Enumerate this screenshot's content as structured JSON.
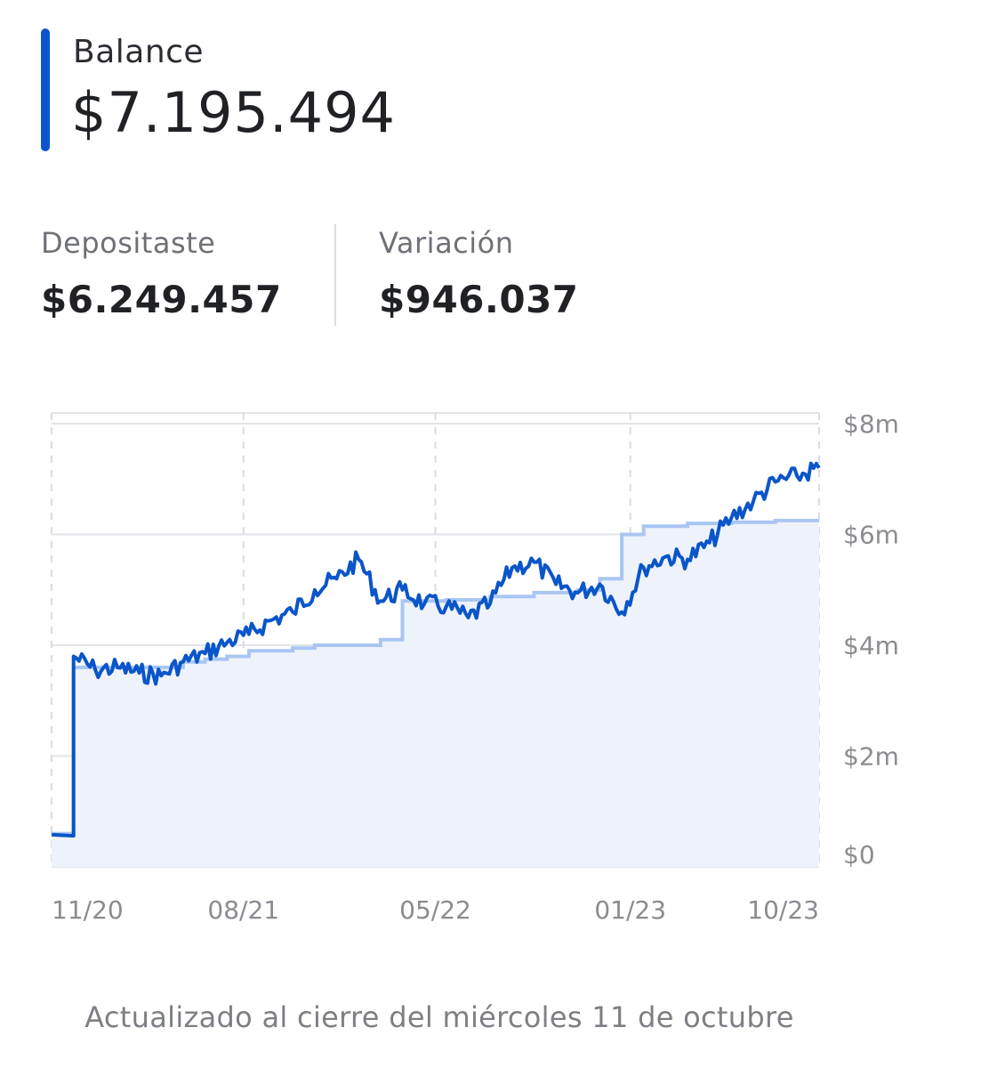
{
  "summary": {
    "balance_label": "Balance",
    "balance_value": "$7.195.494",
    "deposited_label": "Depositaste",
    "deposited_value": "$6.249.457",
    "variation_label": "Variación",
    "variation_value": "$946.037"
  },
  "footer": {
    "updated_text": "Actualizado al cierre del miércoles 11 de octubre"
  },
  "colors": {
    "accent": "#0a55c9",
    "balance_line": "#0a55c9",
    "deposit_line": "#a9c6f3",
    "area_fill": "#eef3fb",
    "grid": "#e1e3e8"
  },
  "chart_data": {
    "type": "line",
    "x_tick_labels": [
      "11/20",
      "08/21",
      "05/22",
      "01/23",
      "10/23"
    ],
    "y_tick_labels": [
      "$8m",
      "$6m",
      "$4m",
      "$2m",
      "$0"
    ],
    "y_ticks": [
      8,
      6,
      4,
      2,
      0
    ],
    "ylim": [
      0,
      8
    ],
    "y_unit": "millions CLP",
    "x_range": [
      "2020-11",
      "2023-10"
    ],
    "grid": true,
    "legend": "none",
    "series": [
      {
        "role": "deposits",
        "style": "step",
        "points": [
          [
            "2020-11",
            0.6
          ],
          [
            "2020-12",
            3.6
          ],
          [
            "2021-04",
            3.6
          ],
          [
            "2021-05",
            3.7
          ],
          [
            "2021-06",
            3.75
          ],
          [
            "2021-07",
            3.8
          ],
          [
            "2021-08",
            3.9
          ],
          [
            "2021-09",
            3.9
          ],
          [
            "2021-10",
            3.95
          ],
          [
            "2021-11",
            4.0
          ],
          [
            "2022-01",
            4.0
          ],
          [
            "2022-02",
            4.1
          ],
          [
            "2022-03",
            4.8
          ],
          [
            "2022-05",
            4.82
          ],
          [
            "2022-07",
            4.88
          ],
          [
            "2022-09",
            4.95
          ],
          [
            "2022-11",
            5.0
          ],
          [
            "2022-12",
            5.2
          ],
          [
            "2023-01",
            6.0
          ],
          [
            "2023-02",
            6.15
          ],
          [
            "2023-04",
            6.2
          ],
          [
            "2023-06",
            6.22
          ],
          [
            "2023-08",
            6.25
          ],
          [
            "2023-10",
            6.25
          ]
        ]
      },
      {
        "role": "balance",
        "style": "line",
        "points": [
          [
            "2020-11",
            0.58
          ],
          [
            "2020-12",
            0.56
          ],
          [
            "2020-12",
            3.8
          ],
          [
            "2021-01",
            3.55
          ],
          [
            "2021-02",
            3.6
          ],
          [
            "2021-03",
            3.5
          ],
          [
            "2021-04",
            3.45
          ],
          [
            "2021-05",
            3.7
          ],
          [
            "2021-06",
            3.85
          ],
          [
            "2021-07",
            4.05
          ],
          [
            "2021-08",
            4.2
          ],
          [
            "2021-09",
            4.45
          ],
          [
            "2021-10",
            4.6
          ],
          [
            "2021-11",
            5.0
          ],
          [
            "2021-12",
            5.2
          ],
          [
            "2022-01",
            5.55
          ],
          [
            "2022-02",
            4.8
          ],
          [
            "2022-03",
            5.0
          ],
          [
            "2022-04",
            4.75
          ],
          [
            "2022-05",
            4.7
          ],
          [
            "2022-06",
            4.5
          ],
          [
            "2022-07",
            4.75
          ],
          [
            "2022-08",
            5.4
          ],
          [
            "2022-09",
            5.5
          ],
          [
            "2022-10",
            5.1
          ],
          [
            "2022-11",
            4.95
          ],
          [
            "2022-12",
            5.1
          ],
          [
            "2023-01",
            4.6
          ],
          [
            "2023-02",
            5.4
          ],
          [
            "2023-03",
            5.6
          ],
          [
            "2023-04",
            5.55
          ],
          [
            "2023-05",
            5.85
          ],
          [
            "2023-06",
            6.3
          ],
          [
            "2023-07",
            6.6
          ],
          [
            "2023-08",
            6.95
          ],
          [
            "2023-09",
            7.05
          ],
          [
            "2023-10",
            7.2
          ]
        ]
      }
    ]
  }
}
